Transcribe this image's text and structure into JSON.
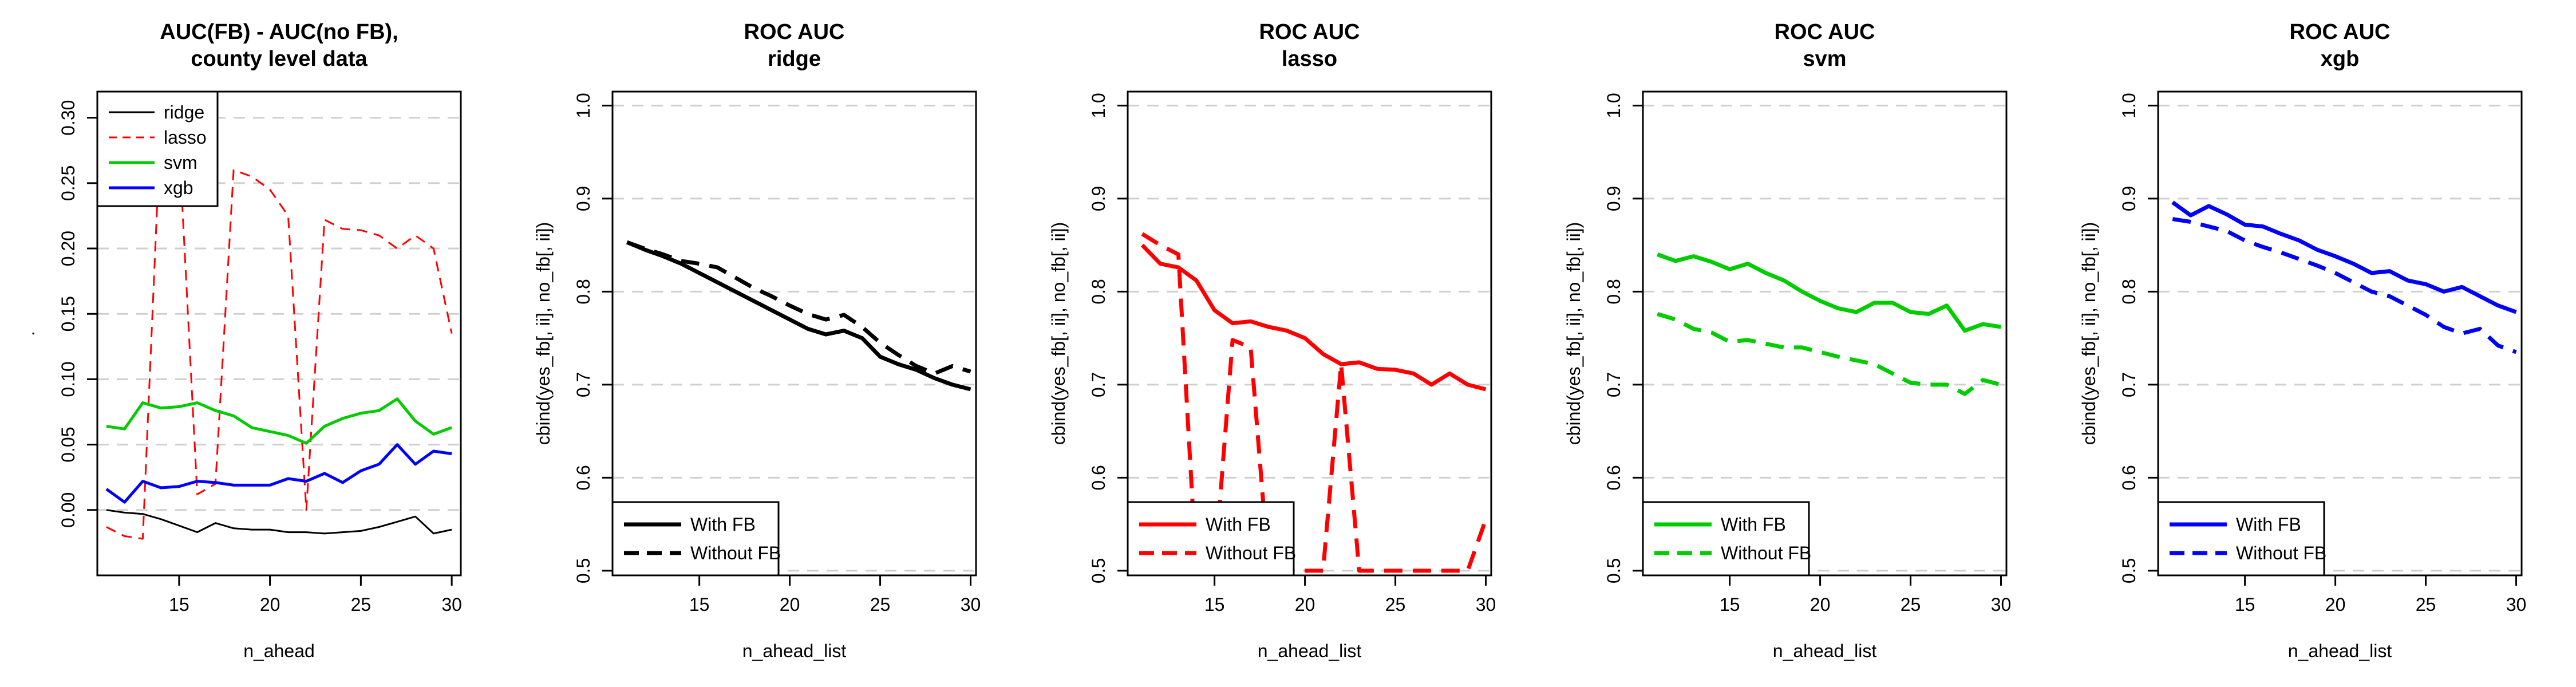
{
  "chart_data": [
    {
      "type": "line",
      "title": "AUC(FB) - AUC(no FB),",
      "subtitle": "county level data",
      "xlabel": "n_ahead",
      "ylabel": ".",
      "xlim": [
        10.5,
        30.5
      ],
      "ylim": [
        -0.05,
        0.32
      ],
      "xticks": [
        15,
        20,
        25,
        30
      ],
      "yticks": [
        0.0,
        0.05,
        0.1,
        0.15,
        0.2,
        0.25,
        0.3
      ],
      "ytick_labels": [
        "0.00",
        "0.05",
        "0.10",
        "0.15",
        "0.20",
        "0.25",
        "0.30"
      ],
      "grid": "horizontal dashed",
      "legend_position": "top-left",
      "x": [
        11,
        12,
        13,
        14,
        15,
        16,
        17,
        18,
        19,
        20,
        21,
        22,
        23,
        24,
        25,
        26,
        27,
        28,
        29,
        30
      ],
      "series": [
        {
          "name": "ridge",
          "color": "#000000",
          "width": 3,
          "dash": false,
          "values": [
            0.0,
            -0.002,
            -0.003,
            -0.007,
            -0.012,
            -0.017,
            -0.01,
            -0.014,
            -0.015,
            -0.015,
            -0.017,
            -0.017,
            -0.018,
            -0.017,
            -0.016,
            -0.013,
            -0.009,
            -0.005,
            -0.018,
            -0.015
          ]
        },
        {
          "name": "lasso",
          "color": "#ff0000",
          "width": 3,
          "dash": true,
          "values": [
            -0.013,
            -0.02,
            -0.022,
            0.3,
            0.28,
            0.012,
            0.02,
            0.26,
            0.255,
            0.245,
            0.225,
            0.0,
            0.222,
            0.215,
            0.214,
            0.21,
            0.2,
            0.21,
            0.2,
            0.135
          ]
        },
        {
          "name": "svm",
          "color": "#00cc00",
          "width": 5,
          "dash": false,
          "values": [
            0.064,
            0.062,
            0.082,
            0.078,
            0.079,
            0.082,
            0.076,
            0.072,
            0.063,
            0.06,
            0.057,
            0.051,
            0.064,
            0.07,
            0.074,
            0.076,
            0.085,
            0.068,
            0.058,
            0.063
          ]
        },
        {
          "name": "xgb",
          "color": "#0000ff",
          "width": 5,
          "dash": false,
          "values": [
            0.016,
            0.006,
            0.022,
            0.017,
            0.018,
            0.022,
            0.021,
            0.019,
            0.019,
            0.019,
            0.024,
            0.022,
            0.028,
            0.021,
            0.03,
            0.035,
            0.05,
            0.035,
            0.045,
            0.043
          ]
        }
      ]
    },
    {
      "type": "line",
      "title": "ROC AUC",
      "subtitle": "ridge",
      "xlabel": "n_ahead_list",
      "ylabel": "cbind(yes_fb[, ii], no_fb[, ii])",
      "xlim": [
        10.2,
        30.3
      ],
      "ylim": [
        0.495,
        1.015
      ],
      "xticks": [
        15,
        20,
        25,
        30
      ],
      "yticks": [
        0.5,
        0.6,
        0.7,
        0.8,
        0.9,
        1.0
      ],
      "ytick_labels": [
        "0.5",
        "0.6",
        "0.7",
        "0.8",
        "0.9",
        "1.0"
      ],
      "grid": "horizontal dashed",
      "legend_position": "bottom-left",
      "x": [
        11,
        12,
        13,
        14,
        15,
        16,
        17,
        18,
        19,
        20,
        21,
        22,
        23,
        24,
        25,
        26,
        27,
        28,
        29,
        30
      ],
      "series": [
        {
          "name": "With FB",
          "color": "#000000",
          "width": 7,
          "dash": false,
          "values": [
            0.853,
            0.845,
            0.838,
            0.83,
            0.82,
            0.81,
            0.8,
            0.79,
            0.78,
            0.77,
            0.76,
            0.754,
            0.758,
            0.75,
            0.73,
            0.722,
            0.716,
            0.707,
            0.7,
            0.695
          ]
        },
        {
          "name": "Without FB",
          "color": "#000000",
          "width": 7,
          "dash": true,
          "values": [
            0.853,
            0.846,
            0.84,
            0.833,
            0.83,
            0.826,
            0.815,
            0.804,
            0.795,
            0.785,
            0.776,
            0.77,
            0.775,
            0.762,
            0.745,
            0.732,
            0.72,
            0.712,
            0.72,
            0.714
          ]
        }
      ]
    },
    {
      "type": "line",
      "title": "ROC AUC",
      "subtitle": "lasso",
      "xlabel": "n_ahead_list",
      "ylabel": "cbind(yes_fb[, ii], no_fb[, ii])",
      "xlim": [
        10.2,
        30.3
      ],
      "ylim": [
        0.495,
        1.015
      ],
      "xticks": [
        15,
        20,
        25,
        30
      ],
      "yticks": [
        0.5,
        0.6,
        0.7,
        0.8,
        0.9,
        1.0
      ],
      "ytick_labels": [
        "0.5",
        "0.6",
        "0.7",
        "0.8",
        "0.9",
        "1.0"
      ],
      "grid": "horizontal dashed",
      "legend_position": "bottom-left",
      "x": [
        11,
        12,
        13,
        14,
        15,
        16,
        17,
        18,
        19,
        20,
        21,
        22,
        23,
        24,
        25,
        26,
        27,
        28,
        29,
        30
      ],
      "series": [
        {
          "name": "With FB",
          "color": "#ff0000",
          "width": 7,
          "dash": false,
          "values": [
            0.85,
            0.83,
            0.826,
            0.812,
            0.78,
            0.766,
            0.768,
            0.762,
            0.758,
            0.75,
            0.733,
            0.722,
            0.724,
            0.717,
            0.716,
            0.712,
            0.7,
            0.712,
            0.7,
            0.695
          ]
        },
        {
          "name": "Without FB",
          "color": "#ff0000",
          "width": 7,
          "dash": true,
          "values": [
            0.862,
            0.85,
            0.84,
            0.5,
            0.5,
            0.748,
            0.74,
            0.5,
            0.5,
            0.5,
            0.5,
            0.722,
            0.5,
            0.5,
            0.5,
            0.5,
            0.5,
            0.5,
            0.5,
            0.555
          ]
        }
      ]
    },
    {
      "type": "line",
      "title": "ROC AUC",
      "subtitle": "svm",
      "xlabel": "n_ahead_list",
      "ylabel": "cbind(yes_fb[, ii], no_fb[, ii])",
      "xlim": [
        10.2,
        30.3
      ],
      "ylim": [
        0.495,
        1.015
      ],
      "xticks": [
        15,
        20,
        25,
        30
      ],
      "yticks": [
        0.5,
        0.6,
        0.7,
        0.8,
        0.9,
        1.0
      ],
      "ytick_labels": [
        "0.5",
        "0.6",
        "0.7",
        "0.8",
        "0.9",
        "1.0"
      ],
      "grid": "horizontal dashed",
      "legend_position": "bottom-left",
      "x": [
        11,
        12,
        13,
        14,
        15,
        16,
        17,
        18,
        19,
        20,
        21,
        22,
        23,
        24,
        25,
        26,
        27,
        28,
        29,
        30
      ],
      "series": [
        {
          "name": "With FB",
          "color": "#00cc00",
          "width": 7,
          "dash": false,
          "values": [
            0.84,
            0.833,
            0.838,
            0.832,
            0.824,
            0.83,
            0.82,
            0.812,
            0.8,
            0.79,
            0.782,
            0.778,
            0.788,
            0.788,
            0.778,
            0.776,
            0.785,
            0.758,
            0.765,
            0.762
          ]
        },
        {
          "name": "Without FB",
          "color": "#00cc00",
          "width": 7,
          "dash": true,
          "values": [
            0.776,
            0.77,
            0.76,
            0.756,
            0.746,
            0.748,
            0.744,
            0.74,
            0.74,
            0.735,
            0.73,
            0.726,
            0.722,
            0.712,
            0.702,
            0.7,
            0.7,
            0.69,
            0.705,
            0.7
          ]
        }
      ]
    },
    {
      "type": "line",
      "title": "ROC AUC",
      "subtitle": "xgb",
      "xlabel": "n_ahead_list",
      "ylabel": "cbind(yes_fb[, ii], no_fb[, ii])",
      "xlim": [
        10.2,
        30.3
      ],
      "ylim": [
        0.495,
        1.015
      ],
      "xticks": [
        15,
        20,
        25,
        30
      ],
      "yticks": [
        0.5,
        0.6,
        0.7,
        0.8,
        0.9,
        1.0
      ],
      "ytick_labels": [
        "0.5",
        "0.6",
        "0.7",
        "0.8",
        "0.9",
        "1.0"
      ],
      "grid": "horizontal dashed",
      "legend_position": "bottom-left",
      "x": [
        11,
        12,
        13,
        14,
        15,
        16,
        17,
        18,
        19,
        20,
        21,
        22,
        23,
        24,
        25,
        26,
        27,
        28,
        29,
        30
      ],
      "series": [
        {
          "name": "With FB",
          "color": "#0000ff",
          "width": 7,
          "dash": false,
          "values": [
            0.896,
            0.882,
            0.892,
            0.883,
            0.872,
            0.87,
            0.862,
            0.855,
            0.845,
            0.838,
            0.83,
            0.82,
            0.822,
            0.812,
            0.808,
            0.8,
            0.805,
            0.795,
            0.785,
            0.778
          ]
        },
        {
          "name": "Without FB",
          "color": "#0000ff",
          "width": 7,
          "dash": true,
          "values": [
            0.878,
            0.875,
            0.87,
            0.865,
            0.855,
            0.848,
            0.842,
            0.835,
            0.828,
            0.82,
            0.81,
            0.8,
            0.795,
            0.785,
            0.775,
            0.762,
            0.755,
            0.76,
            0.742,
            0.735
          ]
        }
      ]
    }
  ]
}
